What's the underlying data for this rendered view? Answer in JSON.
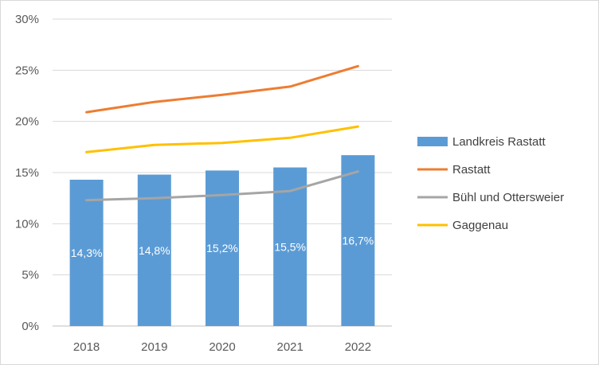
{
  "chart_data": {
    "type": "bar",
    "title": "",
    "xlabel": "",
    "ylabel": "",
    "categories": [
      "2018",
      "2019",
      "2020",
      "2021",
      "2022"
    ],
    "ylim": [
      0,
      30
    ],
    "y_ticks": [
      "0%",
      "5%",
      "10%",
      "15%",
      "20%",
      "25%",
      "30%"
    ],
    "grid": true,
    "legend_position": "right",
    "series": [
      {
        "name": "Landkreis Rastatt",
        "kind": "bar",
        "color": "#5b9bd5",
        "values": [
          14.3,
          14.8,
          15.2,
          15.5,
          16.7
        ],
        "data_labels": [
          "14,3%",
          "14,8%",
          "15,2%",
          "15,5%",
          "16,7%"
        ]
      },
      {
        "name": "Rastatt",
        "kind": "line",
        "color": "#ed7d31",
        "values": [
          20.9,
          21.9,
          22.6,
          23.4,
          25.4
        ]
      },
      {
        "name": "Bühl und Ottersweier",
        "kind": "line",
        "color": "#a5a5a5",
        "values": [
          12.3,
          12.5,
          12.8,
          13.2,
          15.1
        ]
      },
      {
        "name": "Gaggenau",
        "kind": "line",
        "color": "#ffc000",
        "values": [
          17.0,
          17.7,
          17.9,
          18.4,
          19.5
        ]
      }
    ]
  }
}
